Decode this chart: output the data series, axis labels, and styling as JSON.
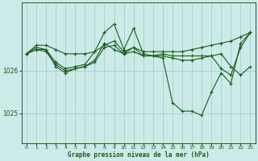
{
  "background_color": "#cceae7",
  "grid_color": "#aad4d0",
  "line_color": "#1a5c1a",
  "marker_color": "#1a5c1a",
  "xlabel": "Graphe pression niveau de la mer (hPa)",
  "xlim": [
    -0.5,
    23.5
  ],
  "ylim": [
    1024.3,
    1027.6
  ],
  "yticks": [
    1025,
    1026
  ],
  "xticks": [
    0,
    1,
    2,
    3,
    4,
    5,
    6,
    7,
    8,
    9,
    10,
    11,
    12,
    13,
    14,
    15,
    16,
    17,
    18,
    19,
    20,
    21,
    22,
    23
  ],
  "series": [
    [
      1026.4,
      1026.6,
      1026.6,
      1026.5,
      1026.4,
      1026.4,
      1026.4,
      1026.45,
      1026.6,
      1026.7,
      1026.45,
      1026.55,
      1026.45,
      1026.45,
      1026.45,
      1026.45,
      1026.45,
      1026.5,
      1026.55,
      1026.6,
      1026.65,
      1026.7,
      1026.8,
      1026.9
    ],
    [
      1026.4,
      1026.5,
      1026.5,
      1026.1,
      1025.95,
      1026.05,
      1026.1,
      1026.2,
      1026.55,
      1026.6,
      1026.4,
      1026.45,
      1026.35,
      1026.35,
      1026.35,
      1026.3,
      1026.25,
      1026.25,
      1026.3,
      1026.35,
      1026.4,
      1026.1,
      1025.9,
      1026.1
    ],
    [
      1026.4,
      1026.55,
      1026.5,
      1026.2,
      1026.05,
      1026.1,
      1026.15,
      1026.45,
      1026.9,
      1027.1,
      1026.5,
      1027.0,
      1026.4,
      1026.35,
      1026.4,
      1026.35,
      1026.35,
      1026.35,
      1026.35,
      1026.35,
      1026.05,
      1025.9,
      1026.55,
      1026.9
    ],
    [
      1026.4,
      1026.5,
      1026.45,
      1026.15,
      1026.0,
      1026.05,
      1026.1,
      1026.25,
      1026.65,
      1026.5,
      1026.4,
      1026.55,
      1026.35,
      1026.35,
      1026.3,
      1025.25,
      1025.05,
      1025.05,
      1024.95,
      1025.5,
      1025.95,
      1025.7,
      1026.65,
      1026.9
    ]
  ]
}
